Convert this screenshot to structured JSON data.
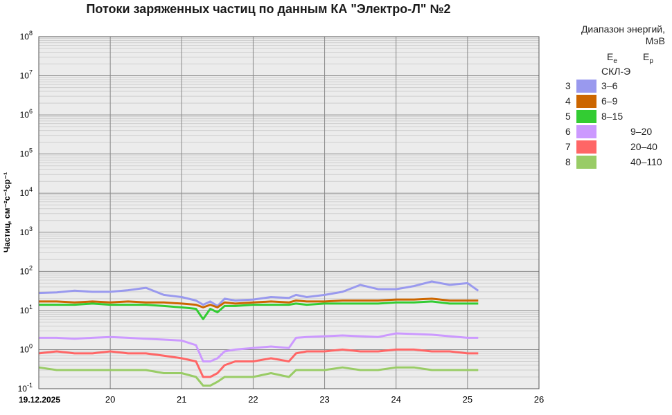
{
  "chart_data": {
    "type": "line",
    "title": "Потоки заряженных частиц по данным КА \"Электро-Л\" №2",
    "ylabel": "Частиц, см⁻²с⁻¹ср⁻¹",
    "yscale": "log",
    "ylim": [
      0.1,
      100000000
    ],
    "y_ticks": [
      {
        "exp": "-1"
      },
      {
        "exp": "0"
      },
      {
        "exp": "1"
      },
      {
        "exp": "2"
      },
      {
        "exp": "3"
      },
      {
        "exp": "4"
      },
      {
        "exp": "5"
      },
      {
        "exp": "6"
      },
      {
        "exp": "7"
      },
      {
        "exp": "8"
      }
    ],
    "xlim": [
      19,
      26
    ],
    "x_ticks": [
      {
        "value": 19,
        "label": "19.12.2025"
      },
      {
        "value": 20,
        "label": "20"
      },
      {
        "value": 21,
        "label": "21"
      },
      {
        "value": 22,
        "label": "22"
      },
      {
        "value": 23,
        "label": "23"
      },
      {
        "value": 24,
        "label": "24"
      },
      {
        "value": 25,
        "label": "25"
      },
      {
        "value": 26,
        "label": "26"
      }
    ],
    "grid": true,
    "legend": {
      "title": "Диапазон энергий, МэВ",
      "col_electrons": "E",
      "col_electrons_sub": "e",
      "col_protons": "E",
      "col_protons_sub": "p",
      "instrument": "СКЛ-Э",
      "position": "right"
    },
    "x": [
      19.0,
      19.25,
      19.5,
      19.75,
      20.0,
      20.25,
      20.5,
      20.75,
      21.0,
      21.2,
      21.3,
      21.4,
      21.5,
      21.6,
      21.75,
      22.0,
      22.25,
      22.5,
      22.6,
      22.75,
      23.0,
      23.25,
      23.5,
      23.75,
      24.0,
      24.25,
      24.5,
      24.75,
      25.0,
      25.15
    ],
    "series": [
      {
        "channel": "3",
        "range": "3–6",
        "particle": "e",
        "color": "#9999ee",
        "values": [
          28,
          29,
          32,
          30,
          30,
          33,
          38,
          25,
          22,
          18,
          14,
          17,
          13,
          20,
          18,
          19,
          22,
          21,
          25,
          22,
          25,
          30,
          45,
          35,
          35,
          42,
          55,
          45,
          50,
          32
        ]
      },
      {
        "channel": "4",
        "range": "6–9",
        "particle": "e",
        "color": "#cc6600",
        "values": [
          17,
          17,
          16,
          17,
          16,
          17,
          16,
          16,
          15,
          14,
          12,
          14,
          12,
          16,
          15,
          16,
          17,
          16,
          18,
          17,
          17,
          18,
          18,
          18,
          19,
          19,
          20,
          18,
          18,
          18
        ]
      },
      {
        "channel": "5",
        "range": "8–15",
        "particle": "e",
        "color": "#33cc33",
        "values": [
          14,
          14,
          14,
          15,
          14,
          14,
          14,
          13,
          12,
          11,
          6,
          11,
          9,
          13,
          13,
          14,
          14,
          14,
          15,
          14,
          15,
          15,
          15,
          15,
          16,
          16,
          17,
          15,
          15,
          15
        ]
      },
      {
        "channel": "6",
        "range": "9–20",
        "particle": "p",
        "color": "#cc99ff",
        "values": [
          2.0,
          2.0,
          1.9,
          2.0,
          2.1,
          2.0,
          1.9,
          1.8,
          1.7,
          1.3,
          0.5,
          0.5,
          0.6,
          0.9,
          1.0,
          1.1,
          1.2,
          1.1,
          2.0,
          2.1,
          2.2,
          2.3,
          2.2,
          2.1,
          2.6,
          2.5,
          2.4,
          2.2,
          2.0,
          2.0
        ]
      },
      {
        "channel": "7",
        "range": "20–40",
        "particle": "p",
        "color": "#ff6666",
        "values": [
          0.8,
          0.9,
          0.8,
          0.8,
          0.9,
          0.8,
          0.8,
          0.7,
          0.6,
          0.5,
          0.2,
          0.2,
          0.25,
          0.4,
          0.5,
          0.5,
          0.6,
          0.5,
          0.8,
          0.9,
          0.9,
          1.0,
          0.9,
          0.9,
          1.0,
          1.0,
          0.9,
          0.9,
          0.8,
          0.8
        ]
      },
      {
        "channel": "8",
        "range": "40–110",
        "particle": "p",
        "color": "#99cc66",
        "values": [
          0.35,
          0.3,
          0.3,
          0.3,
          0.3,
          0.3,
          0.3,
          0.25,
          0.25,
          0.2,
          0.12,
          0.12,
          0.15,
          0.2,
          0.2,
          0.2,
          0.25,
          0.2,
          0.3,
          0.3,
          0.3,
          0.35,
          0.3,
          0.3,
          0.35,
          0.35,
          0.3,
          0.3,
          0.3,
          0.3
        ]
      }
    ]
  }
}
